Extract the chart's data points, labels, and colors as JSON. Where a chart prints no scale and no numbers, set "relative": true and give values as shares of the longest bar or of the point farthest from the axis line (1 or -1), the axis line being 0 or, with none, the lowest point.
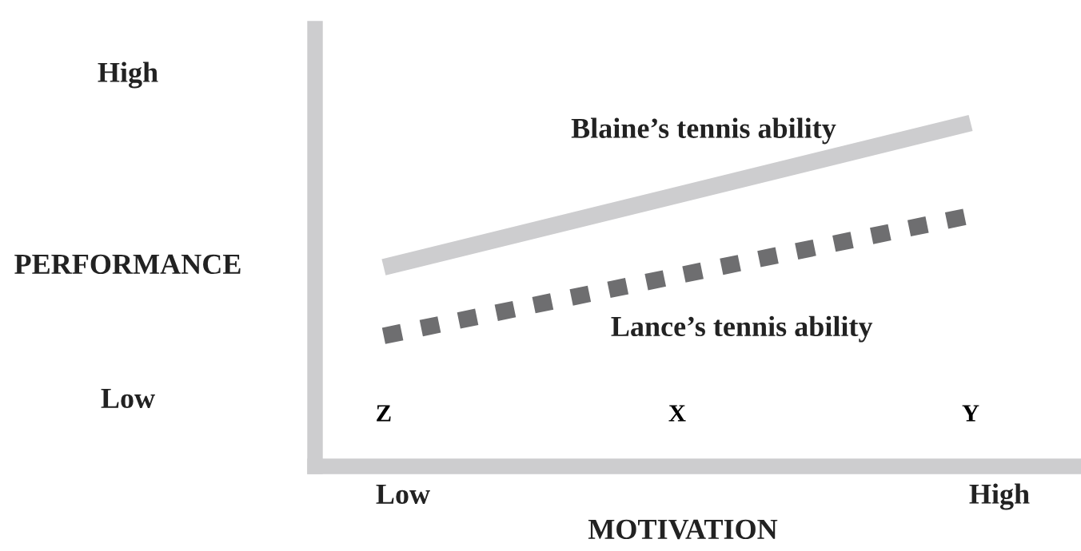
{
  "chart_data": {
    "type": "line",
    "relative": true,
    "xlabel": "MOTIVATION",
    "ylabel": "PERFORMANCE",
    "categories": [
      "Z",
      "X",
      "Y"
    ],
    "series": [
      {
        "name": "Blaine’s tennis ability",
        "color": "#cdcdcf",
        "line_style": "solid",
        "values": [
          0.58,
          0.79,
          1.0
        ]
      },
      {
        "name": "Lance’s tennis ability",
        "color": "#6e6e70",
        "line_style": "dotted",
        "values": [
          0.38,
          0.555,
          0.73
        ]
      }
    ],
    "annotations": [
      "High",
      "Low",
      "Low",
      "High"
    ],
    "legend": false,
    "grid": false,
    "marker": "none"
  }
}
